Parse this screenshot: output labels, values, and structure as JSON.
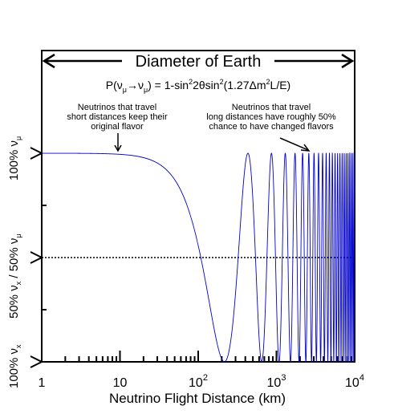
{
  "chart_data": {
    "type": "line",
    "x_scale": "log",
    "xlim": [
      1,
      10000
    ],
    "y_levels": {
      "bottom": 0,
      "middle": 0.5,
      "top": 1
    },
    "x_tick_labels": [
      {
        "base": "1",
        "exp": "",
        "value": 1
      },
      {
        "base": "10",
        "exp": "",
        "value": 10
      },
      {
        "base": "10",
        "exp": "2",
        "value": 100
      },
      {
        "base": "10",
        "exp": "3",
        "value": 1000
      },
      {
        "base": "10",
        "exp": "4",
        "value": 10000
      }
    ],
    "xlabel": "Neutrino Flight Distance (km)",
    "y_tick_labels": [
      "100% ν_x",
      "50% ν_x / 50% ν_μ",
      "100% ν_μ"
    ],
    "banner": "Diameter of Earth",
    "formula": "P(ν_μ→ν_μ) = 1-sin²2θsin²(1.27Δm²L/E)",
    "annotations": [
      {
        "lines": [
          "Neutrinos that travel",
          "short distances keep their",
          "original flavor"
        ]
      },
      {
        "lines": [
          "Neutrinos that travel",
          "long distances have roughly 50%",
          "chance to have changed flavors"
        ]
      }
    ],
    "oscillation": {
      "first_minimum_km": 216,
      "sampled_points": [
        {
          "x": 1,
          "y": 1
        },
        {
          "x": 10,
          "y": 1
        },
        {
          "x": 100,
          "y": 0.55
        },
        {
          "x": 216,
          "y": 0
        },
        {
          "x": 432,
          "y": 1
        },
        {
          "x": 648,
          "y": 0
        },
        {
          "x": 10000,
          "y": 1
        }
      ]
    },
    "reference_line": {
      "y": 0.5,
      "style": "dotted"
    },
    "line_color": "#0000cc"
  }
}
